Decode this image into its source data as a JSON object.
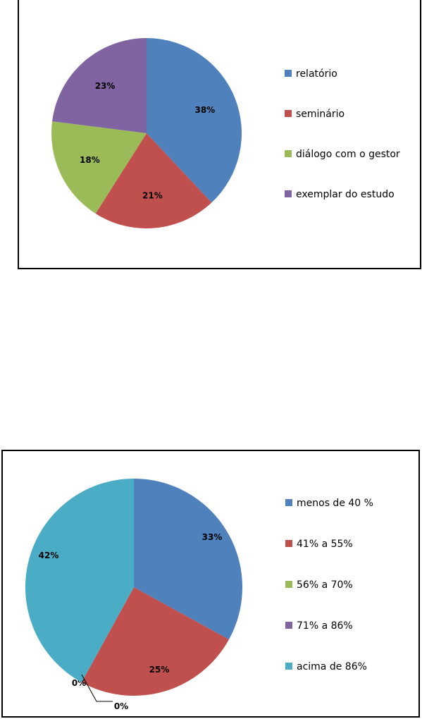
{
  "chart_data": [
    {
      "type": "pie",
      "categories": [
        "relatório",
        "seminário",
        "diálogo com o gestor",
        "exemplar do estudo"
      ],
      "values": [
        38,
        21,
        18,
        23
      ],
      "labels": [
        "38%",
        "21%",
        "18%",
        "23%"
      ],
      "colors": [
        "#4F81BD",
        "#C0504D",
        "#9BBB59",
        "#8064A2"
      ],
      "legend": "right",
      "title": ""
    },
    {
      "type": "pie",
      "categories": [
        "menos de 40 %",
        "41% a 55%",
        "56% a 70%",
        "71% a 86%",
        "acima de 86%"
      ],
      "values": [
        33,
        25,
        0,
        0,
        42
      ],
      "labels": [
        "33%",
        "25%",
        "0%",
        "0%",
        "42%"
      ],
      "colors": [
        "#4F81BD",
        "#C0504D",
        "#9BBB59",
        "#8064A2",
        "#4BACC6"
      ],
      "legend": "right",
      "title": ""
    }
  ]
}
